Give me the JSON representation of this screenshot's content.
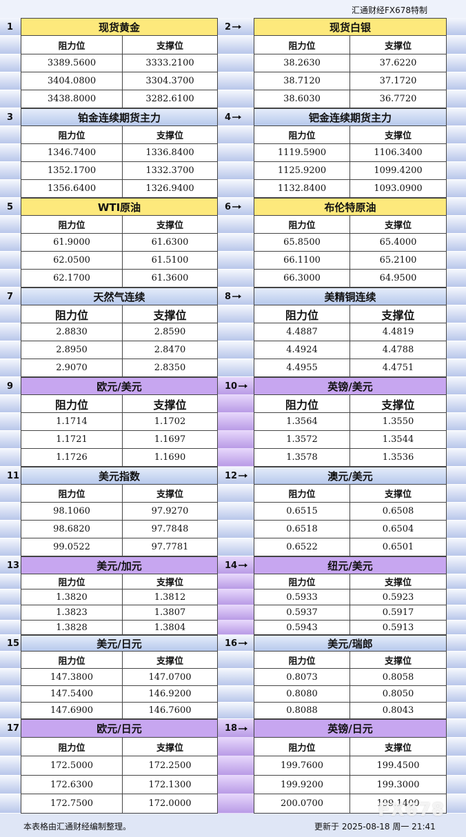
{
  "header": {
    "title": "汇通财经FX678特制"
  },
  "column_headers": [
    "阻力位",
    "支撑位"
  ],
  "blocks": [
    {
      "number": "1",
      "title": "现货黄金",
      "rows": [
        [
          "3389.5600",
          "3333.2100"
        ],
        [
          "3404.0800",
          "3304.3700"
        ],
        [
          "3438.8000",
          "3282.6100"
        ]
      ]
    },
    {
      "number": "2",
      "title": "现货白银",
      "rows": [
        [
          "38.2630",
          "37.6220"
        ],
        [
          "38.7120",
          "37.1720"
        ],
        [
          "38.6030",
          "36.7720"
        ]
      ]
    },
    {
      "number": "3",
      "title": "铂金连续期货主力",
      "rows": [
        [
          "1346.7400",
          "1336.8400"
        ],
        [
          "1352.1700",
          "1332.3700"
        ],
        [
          "1356.6400",
          "1326.9400"
        ]
      ]
    },
    {
      "number": "4",
      "title": "钯金连续期货主力",
      "rows": [
        [
          "1119.5900",
          "1106.3400"
        ],
        [
          "1125.9200",
          "1099.4200"
        ],
        [
          "1132.8400",
          "1093.0900"
        ]
      ]
    },
    {
      "number": "5",
      "title": "WTI原油",
      "rows": [
        [
          "61.9000",
          "61.6300"
        ],
        [
          "62.0500",
          "61.5100"
        ],
        [
          "62.1700",
          "61.3600"
        ]
      ]
    },
    {
      "number": "6",
      "title": "布伦特原油",
      "rows": [
        [
          "65.8500",
          "65.4000"
        ],
        [
          "66.1100",
          "65.2100"
        ],
        [
          "66.3000",
          "64.9500"
        ]
      ]
    },
    {
      "number": "7",
      "title": "天然气连续",
      "rows": [
        [
          "2.8830",
          "2.8590"
        ],
        [
          "2.8950",
          "2.8470"
        ],
        [
          "2.9070",
          "2.8350"
        ]
      ]
    },
    {
      "number": "8",
      "title": "美精铜连续",
      "rows": [
        [
          "4.4887",
          "4.4819"
        ],
        [
          "4.4924",
          "4.4788"
        ],
        [
          "4.4955",
          "4.4751"
        ]
      ]
    },
    {
      "number": "9",
      "title": "欧元/美元",
      "rows": [
        [
          "1.1714",
          "1.1702"
        ],
        [
          "1.1721",
          "1.1697"
        ],
        [
          "1.1726",
          "1.1690"
        ]
      ]
    },
    {
      "number": "10",
      "title": "英镑/美元",
      "rows": [
        [
          "1.3564",
          "1.3550"
        ],
        [
          "1.3572",
          "1.3544"
        ],
        [
          "1.3578",
          "1.3536"
        ]
      ]
    },
    {
      "number": "11",
      "title": "美元指数",
      "rows": [
        [
          "98.1060",
          "97.9270"
        ],
        [
          "98.6820",
          "97.7848"
        ],
        [
          "99.0522",
          "97.7781"
        ]
      ]
    },
    {
      "number": "12",
      "title": "澳元/美元",
      "rows": [
        [
          "0.6515",
          "0.6508"
        ],
        [
          "0.6518",
          "0.6504"
        ],
        [
          "0.6522",
          "0.6501"
        ]
      ]
    },
    {
      "number": "13",
      "title": "美元/加元",
      "rows": [
        [
          "1.3820",
          "1.3812"
        ],
        [
          "1.3823",
          "1.3807"
        ],
        [
          "1.3828",
          "1.3804"
        ]
      ]
    },
    {
      "number": "14",
      "title": "纽元/美元",
      "rows": [
        [
          "0.5933",
          "0.5923"
        ],
        [
          "0.5937",
          "0.5917"
        ],
        [
          "0.5943",
          "0.5913"
        ]
      ]
    },
    {
      "number": "15",
      "title": "美元/日元",
      "rows": [
        [
          "147.3800",
          "147.0700"
        ],
        [
          "147.5400",
          "146.9200"
        ],
        [
          "147.6900",
          "146.7600"
        ]
      ]
    },
    {
      "number": "16",
      "title": "美元/瑞郎",
      "rows": [
        [
          "0.8073",
          "0.8058"
        ],
        [
          "0.8080",
          "0.8050"
        ],
        [
          "0.8088",
          "0.8043"
        ]
      ]
    },
    {
      "number": "17",
      "title": "欧元/日元",
      "rows": [
        [
          "172.5000",
          "172.2500"
        ],
        [
          "172.6300",
          "172.1300"
        ],
        [
          "172.7500",
          "172.0000"
        ]
      ]
    },
    {
      "number": "18",
      "title": "英镑/日元",
      "rows": [
        [
          "199.7600",
          "199.4500"
        ],
        [
          "199.9200",
          "199.3000"
        ],
        [
          "200.0700",
          "199.1400"
        ]
      ]
    }
  ],
  "footer": {
    "note": "本表格由汇通财经编制整理。",
    "updated": "更新于 2025-08-18 周一 21:41",
    "watermark": "FX678"
  }
}
